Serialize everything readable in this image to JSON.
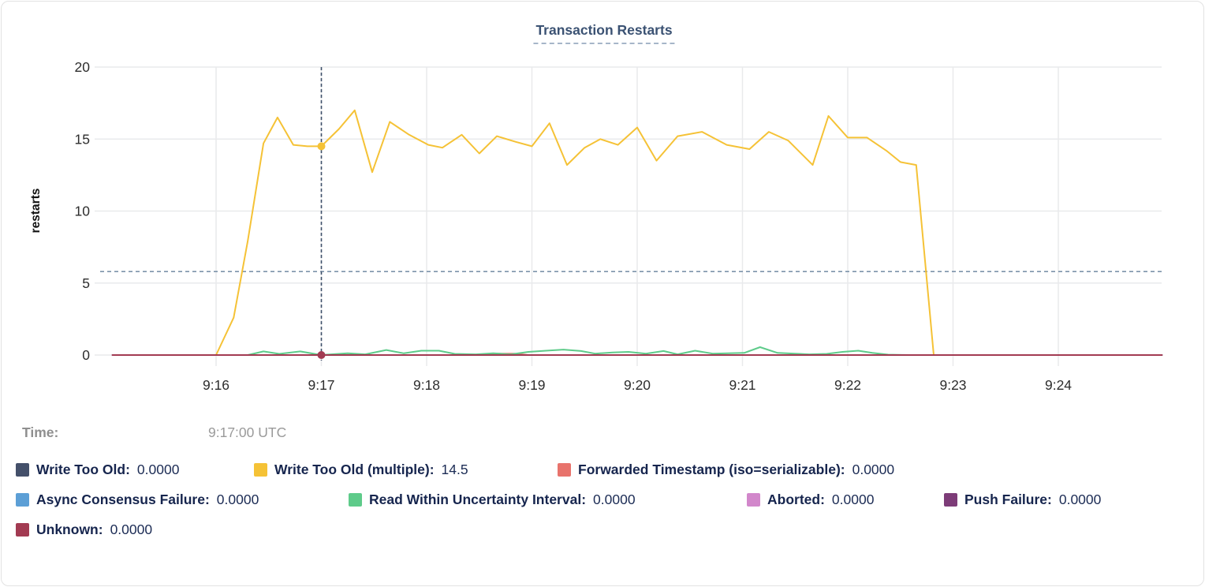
{
  "title": "Transaction Restarts",
  "tooltip": {
    "time_label": "Time:",
    "time_value": "9:17:00 UTC"
  },
  "colors": {
    "grid": "#e9eaec",
    "axis_text": "#2d2d2d",
    "threshold_line": "#7d93aa",
    "crosshair_line": "#3f516b",
    "title_underline": "#a6b6c9"
  },
  "legend": {
    "rows": [
      [
        {
          "label": "Write Too Old:",
          "value": "0.0000",
          "color": "#44506a"
        },
        {
          "label": "Write Too Old (multiple):",
          "value": "14.5",
          "color": "#f5c236"
        },
        {
          "label": "Forwarded Timestamp (iso=serializable):",
          "value": "0.0000",
          "color": "#e8736c"
        }
      ],
      [
        {
          "label": "Async Consensus Failure:",
          "value": "0.0000",
          "color": "#5c9fd6"
        },
        {
          "label": "Read Within Uncertainty Interval:",
          "value": "0.0000",
          "color": "#5ecb8a"
        },
        {
          "label": "Aborted:",
          "value": "0.0000",
          "color": "#d287cb"
        },
        {
          "label": "Push Failure:",
          "value": "0.0000",
          "color": "#7d3c78"
        }
      ],
      [
        {
          "label": "Unknown:",
          "value": "0.0000",
          "color": "#a23b52"
        }
      ]
    ]
  },
  "chart_data": {
    "type": "line",
    "title": "Transaction Restarts",
    "ylabel": "restarts",
    "ylim": [
      0,
      20
    ],
    "y_ticks": [
      0,
      5,
      10,
      15,
      20
    ],
    "x_tick_labels": [
      "9:16",
      "9:17",
      "9:18",
      "9:19",
      "9:20",
      "9:21",
      "9:22",
      "9:23",
      "9:24"
    ],
    "x_tick_interval_seconds": 60,
    "x_unit": "seconds after 9:16:00 UTC",
    "x_domain_seconds": [
      -59,
      539
    ],
    "grid": true,
    "legend_position": "bottom",
    "threshold_value": 5.8,
    "crosshair": {
      "x_seconds": 60,
      "time": "9:17:00 UTC",
      "dots": [
        {
          "series": "Write Too Old (multiple)",
          "value": 14.5
        },
        {
          "series": "Unknown",
          "value": 0
        }
      ]
    },
    "series": [
      {
        "name": "Write Too Old",
        "color": "#44506a",
        "value_at_cursor": "0.0000",
        "points": [
          [
            -59,
            0
          ],
          [
            539,
            0
          ]
        ]
      },
      {
        "name": "Write Too Old (multiple)",
        "color": "#f5c236",
        "value_at_cursor": "14.5",
        "points": [
          [
            0,
            0
          ],
          [
            10,
            2.6
          ],
          [
            18,
            7.9
          ],
          [
            27,
            14.7
          ],
          [
            35,
            16.5
          ],
          [
            44,
            14.6
          ],
          [
            52,
            14.5
          ],
          [
            60,
            14.5
          ],
          [
            70,
            15.7
          ],
          [
            79,
            17.0
          ],
          [
            89,
            12.7
          ],
          [
            99,
            16.2
          ],
          [
            110,
            15.3
          ],
          [
            121,
            14.6
          ],
          [
            129,
            14.4
          ],
          [
            140,
            15.3
          ],
          [
            150,
            14.0
          ],
          [
            160,
            15.2
          ],
          [
            171,
            14.8
          ],
          [
            180,
            14.5
          ],
          [
            190,
            16.1
          ],
          [
            200,
            13.2
          ],
          [
            210,
            14.4
          ],
          [
            219,
            15.0
          ],
          [
            229,
            14.6
          ],
          [
            240,
            15.8
          ],
          [
            251,
            13.5
          ],
          [
            263,
            15.2
          ],
          [
            277,
            15.5
          ],
          [
            291,
            14.6
          ],
          [
            304,
            14.3
          ],
          [
            315,
            15.5
          ],
          [
            326,
            14.9
          ],
          [
            340,
            13.2
          ],
          [
            349,
            16.6
          ],
          [
            360,
            15.1
          ],
          [
            371,
            15.1
          ],
          [
            382,
            14.2
          ],
          [
            390,
            13.4
          ],
          [
            399,
            13.2
          ],
          [
            409,
            0
          ]
        ]
      },
      {
        "name": "Forwarded Timestamp (iso=serializable)",
        "color": "#e8736c",
        "value_at_cursor": "0.0000",
        "points": [
          [
            -59,
            0
          ],
          [
            150,
            0
          ],
          [
            157,
            0.1
          ],
          [
            170,
            0.1
          ],
          [
            178,
            0
          ],
          [
            539,
            0
          ]
        ]
      },
      {
        "name": "Async Consensus Failure",
        "color": "#5c9fd6",
        "value_at_cursor": "0.0000",
        "points": [
          [
            -59,
            0
          ],
          [
            539,
            0
          ]
        ]
      },
      {
        "name": "Read Within Uncertainty Interval",
        "color": "#5ecb8a",
        "value_at_cursor": "0.0000",
        "points": [
          [
            -59,
            0
          ],
          [
            18,
            0
          ],
          [
            27,
            0.25
          ],
          [
            36,
            0.08
          ],
          [
            48,
            0.25
          ],
          [
            57,
            0.06
          ],
          [
            62,
            0.02
          ],
          [
            75,
            0.12
          ],
          [
            85,
            0.05
          ],
          [
            97,
            0.35
          ],
          [
            107,
            0.12
          ],
          [
            117,
            0.3
          ],
          [
            127,
            0.3
          ],
          [
            136,
            0.08
          ],
          [
            148,
            0.05
          ],
          [
            158,
            0.12
          ],
          [
            168,
            0.05
          ],
          [
            178,
            0.22
          ],
          [
            188,
            0.3
          ],
          [
            198,
            0.38
          ],
          [
            208,
            0.28
          ],
          [
            216,
            0.1
          ],
          [
            226,
            0.18
          ],
          [
            235,
            0.22
          ],
          [
            245,
            0.1
          ],
          [
            255,
            0.28
          ],
          [
            263,
            0.05
          ],
          [
            273,
            0.3
          ],
          [
            283,
            0.1
          ],
          [
            292,
            0.12
          ],
          [
            301,
            0.15
          ],
          [
            310,
            0.55
          ],
          [
            320,
            0.15
          ],
          [
            330,
            0.1
          ],
          [
            338,
            0.05
          ],
          [
            348,
            0.08
          ],
          [
            357,
            0.22
          ],
          [
            366,
            0.3
          ],
          [
            374,
            0.15
          ],
          [
            383,
            0.03
          ],
          [
            395,
            0
          ],
          [
            539,
            0
          ]
        ]
      },
      {
        "name": "Aborted",
        "color": "#d287cb",
        "value_at_cursor": "0.0000",
        "points": [
          [
            -59,
            0
          ],
          [
            539,
            0
          ]
        ]
      },
      {
        "name": "Push Failure",
        "color": "#7d3c78",
        "value_at_cursor": "0.0000",
        "points": [
          [
            -59,
            0
          ],
          [
            539,
            0
          ]
        ]
      },
      {
        "name": "Unknown",
        "color": "#a23b52",
        "value_at_cursor": "0.0000",
        "points": [
          [
            -59,
            0
          ],
          [
            539,
            0
          ]
        ]
      }
    ]
  }
}
